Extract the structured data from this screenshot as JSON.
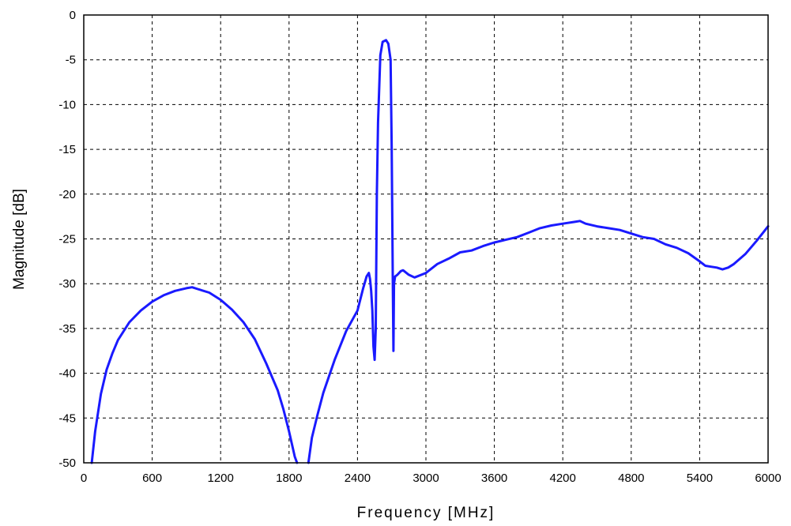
{
  "chart_data": {
    "type": "line",
    "title": "",
    "xlabel": "Frequency [MHz]",
    "ylabel": "Magnitude [dB]",
    "xlim": [
      0,
      6000
    ],
    "ylim": [
      -50,
      0
    ],
    "x_ticks": [
      0,
      600,
      1200,
      1800,
      2400,
      3000,
      3600,
      4200,
      4800,
      5400,
      6000
    ],
    "y_ticks": [
      0,
      -5,
      -10,
      -15,
      -20,
      -25,
      -30,
      -35,
      -40,
      -45,
      -50
    ],
    "grid": true,
    "line_color": "#1a1aff",
    "series": [
      {
        "x": [
          70,
          100,
          150,
          200,
          250,
          300,
          400,
          500,
          600,
          700,
          800,
          900,
          950,
          1000,
          1100,
          1200,
          1300,
          1400,
          1500,
          1600,
          1700,
          1750,
          1800,
          1850,
          1870
        ],
        "y": [
          -50,
          -46.5,
          -42.3,
          -39.6,
          -37.8,
          -36.3,
          -34.3,
          -33.0,
          -32.0,
          -31.3,
          -30.8,
          -30.5,
          -30.4,
          -30.6,
          -31.0,
          -31.8,
          -32.9,
          -34.3,
          -36.2,
          -38.9,
          -41.9,
          -44.0,
          -46.5,
          -49.3,
          -50
        ]
      },
      {
        "x": [
          1970,
          2000,
          2050,
          2100,
          2200,
          2300,
          2400,
          2450,
          2480,
          2500,
          2510,
          2520,
          2530,
          2540,
          2550,
          2560,
          2570,
          2580,
          2600,
          2620,
          2650,
          2670,
          2690,
          2700,
          2710,
          2715,
          2720,
          2730,
          2750,
          2780,
          2800,
          2850,
          2900,
          3000,
          3100,
          3200,
          3300,
          3400,
          3500,
          3600,
          3700,
          3800,
          3900,
          4000,
          4100,
          4200,
          4300,
          4350,
          4400,
          4500,
          4600,
          4700,
          4800,
          4900,
          5000,
          5100,
          5200,
          5300,
          5400,
          5450,
          5500,
          5550,
          5600,
          5650,
          5700,
          5800,
          5900,
          6000
        ],
        "y": [
          -50,
          -47.2,
          -44.6,
          -42.2,
          -38.5,
          -35.3,
          -33.0,
          -30.5,
          -29.2,
          -28.8,
          -29.5,
          -30.8,
          -33.0,
          -37.0,
          -38.5,
          -35.0,
          -20.0,
          -12.0,
          -4.5,
          -3.0,
          -2.8,
          -3.2,
          -5.0,
          -15.0,
          -30.0,
          -37.5,
          -30.0,
          -29.2,
          -29.0,
          -28.6,
          -28.5,
          -29.0,
          -29.3,
          -28.8,
          -27.8,
          -27.2,
          -26.5,
          -26.3,
          -25.8,
          -25.4,
          -25.1,
          -24.8,
          -24.3,
          -23.8,
          -23.5,
          -23.3,
          -23.1,
          -23.0,
          -23.3,
          -23.6,
          -23.8,
          -24.0,
          -24.4,
          -24.8,
          -25.0,
          -25.6,
          -26.0,
          -26.6,
          -27.5,
          -28.0,
          -28.1,
          -28.2,
          -28.4,
          -28.2,
          -27.8,
          -26.7,
          -25.2,
          -23.6
        ]
      }
    ]
  }
}
